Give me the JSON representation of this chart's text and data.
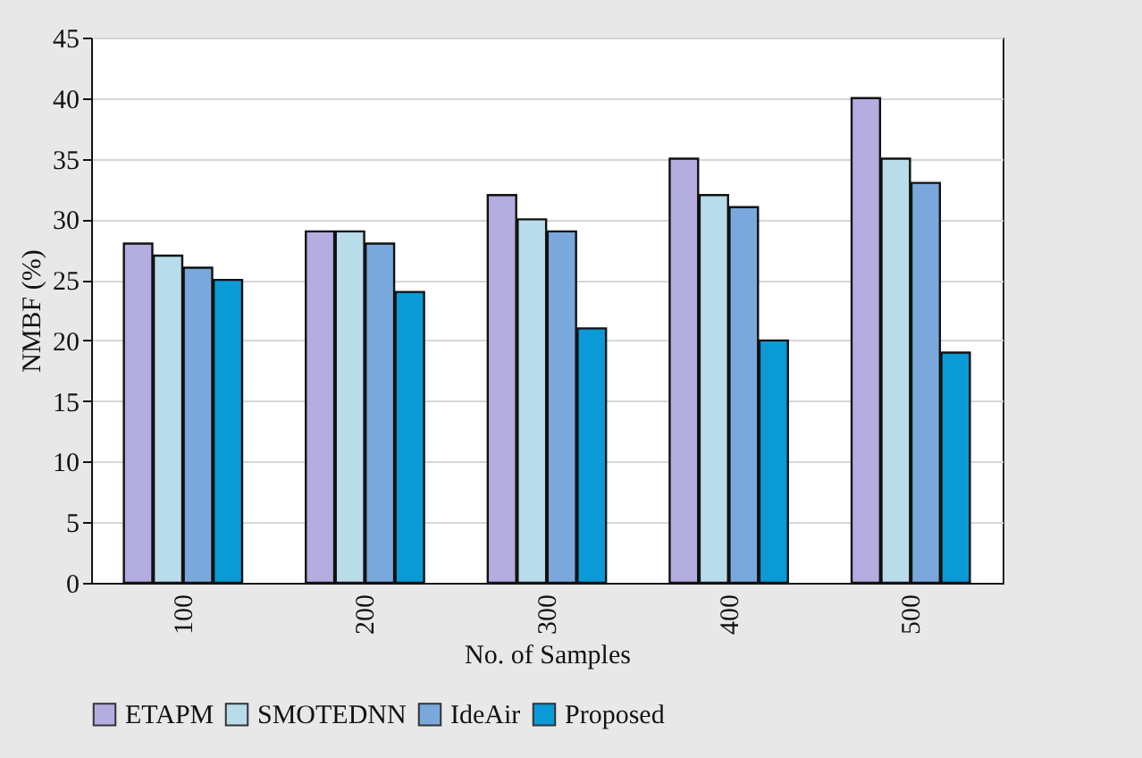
{
  "chart_data": {
    "type": "bar",
    "xlabel": "No. of Samples",
    "ylabel": "NMBF (%)",
    "categories": [
      "100",
      "200",
      "300",
      "400",
      "500"
    ],
    "series": [
      {
        "name": "ETAPM",
        "color": "#b3ade0",
        "values": [
          28,
          29,
          32,
          35,
          40
        ]
      },
      {
        "name": "SMOTEDNN",
        "color": "#b8dcea",
        "values": [
          27,
          29,
          30,
          32,
          35
        ]
      },
      {
        "name": "IdeAir",
        "color": "#7aa8dc",
        "values": [
          26,
          28,
          29,
          31,
          33
        ]
      },
      {
        "name": "Proposed",
        "color": "#0a9ad6",
        "values": [
          25,
          24,
          21,
          20,
          19
        ]
      }
    ],
    "ylim": [
      0,
      45
    ],
    "yticks": [
      0,
      5,
      10,
      15,
      20,
      25,
      30,
      35,
      40,
      45
    ],
    "grid": "y",
    "legend": "bottom"
  }
}
